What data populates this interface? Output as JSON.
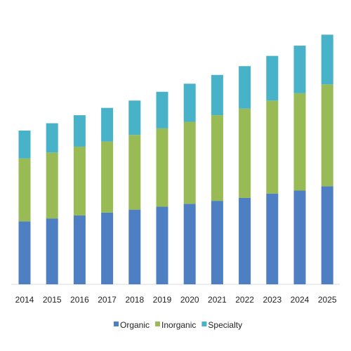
{
  "chart_data": {
    "type": "bar",
    "stacked": true,
    "title": "",
    "xlabel": "",
    "ylabel": "",
    "categories": [
      "2014",
      "2015",
      "2016",
      "2017",
      "2018",
      "2019",
      "2020",
      "2021",
      "2022",
      "2023",
      "2024",
      "2025"
    ],
    "series": [
      {
        "name": "Organic",
        "color": "#4e7fc3",
        "values": [
          86,
          90,
          94,
          98,
          102,
          106,
          110,
          114,
          118,
          124,
          128,
          134
        ]
      },
      {
        "name": "Inorganic",
        "color": "#98bb56",
        "values": [
          86,
          90,
          94,
          97,
          102,
          107,
          112,
          117,
          122,
          127,
          133,
          139
        ]
      },
      {
        "name": "Specialty",
        "color": "#48b2c9",
        "values": [
          38,
          40,
          43,
          46,
          47,
          50,
          52,
          55,
          58,
          61,
          65,
          68
        ]
      }
    ],
    "ylim": [
      0,
      350
    ],
    "grid": false,
    "legend": "bottom"
  }
}
